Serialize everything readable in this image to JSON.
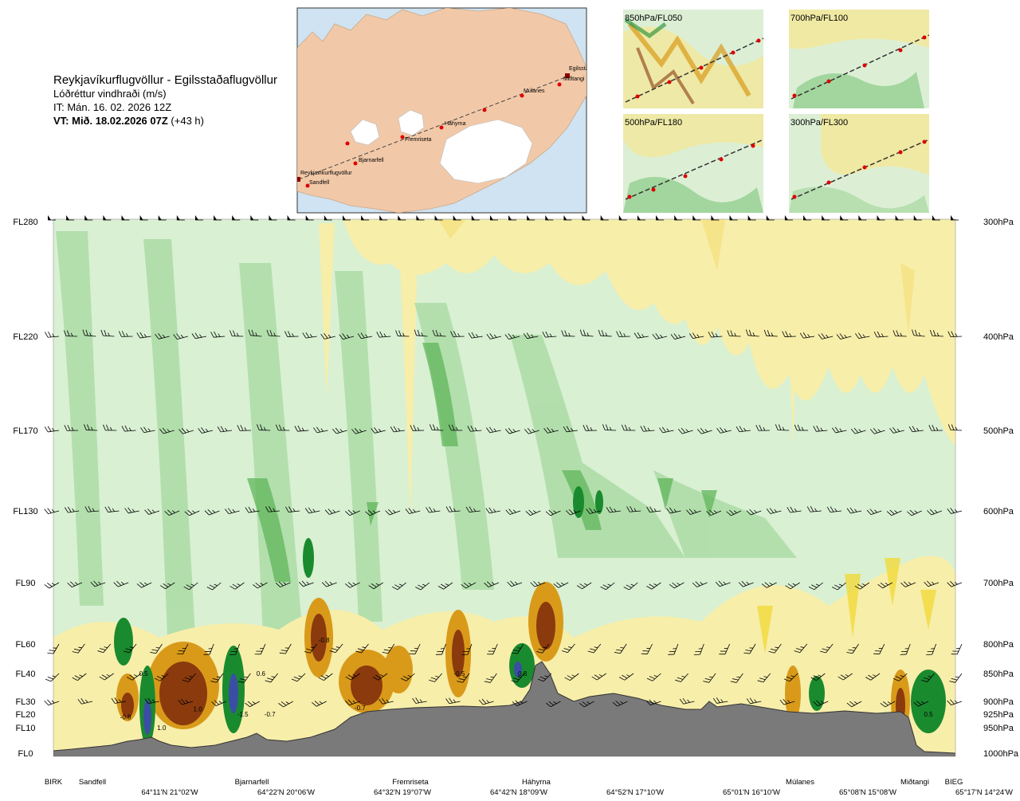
{
  "header": {
    "route_title": "Reykjavíkurflugvöllur - Egilsstaðaflugvöllur",
    "variable": "Lóðréttur vindhraði (m/s)",
    "issue_time": "IT: Mán. 16. 02. 2026 12Z",
    "valid_time_label": "VT: Mið. 18.02.2026 07Z",
    "valid_offset": "(+43 h)"
  },
  "map": {
    "places": [
      "Reykjavíkurflugvöllur",
      "Sandfell",
      "Bjarnarfell",
      "Fremriseta",
      "Háhyrna",
      "Múlanes",
      "Miðtangi",
      "Egilssta"
    ]
  },
  "thumbnails": [
    {
      "label": "850hPa/FL050"
    },
    {
      "label": "700hPa/FL100"
    },
    {
      "label": "500hPa/FL180"
    },
    {
      "label": "300hPa/FL300"
    }
  ],
  "colors": {
    "up_light": "#d9f0d3",
    "up_mid": "#a6d9a0",
    "up_strong": "#5fb65b",
    "up_vstrong": "#1a8a2e",
    "up_max": "#3a4fa3",
    "down_light": "#f7eeaa",
    "down_mid": "#f0d93a",
    "down_strong": "#d99a1a",
    "down_max": "#8a3a0d",
    "terrain": "#7a7a7a",
    "map_land": "#f2c9a8",
    "map_sea": "#cfe3f2",
    "glacier": "#ffffff",
    "route_point": "#e00000"
  },
  "chart_data": {
    "type": "heatmap",
    "title": "Lóðréttur vindhraði (m/s)",
    "left_axis_levels": [
      "FL280",
      "FL220",
      "FL170",
      "FL130",
      "FL90",
      "FL60",
      "FL40",
      "FL30",
      "FL20",
      "FL10",
      "FL0"
    ],
    "right_axis_levels": [
      "300hPa",
      "400hPa",
      "500hPa",
      "600hPa",
      "700hPa",
      "800hPa",
      "850hPa",
      "900hPa",
      "925hPa",
      "950hPa",
      "1000hPa"
    ],
    "flight_level_values": [
      280,
      220,
      170,
      130,
      90,
      60,
      40,
      30,
      20,
      10,
      0
    ],
    "x_places": [
      "BIRK",
      "Sandfell",
      "Bjarnarfell",
      "Fremriseta",
      "Háhyrna",
      "Múlanes",
      "Miðtangi",
      "BIEG"
    ],
    "x_coordinates": [
      "64°11'N 21°02'W",
      "64°22'N 20°06'W",
      "64°32'N 19°07'W",
      "64°42'N 18°09'W",
      "64°52'N 17°10'W",
      "65°01'N 16°10'W",
      "65°08'N 15°08'W",
      "65°17'N 14°24'W"
    ],
    "contour_labels": [
      {
        "distance": 0.08,
        "flight_level": 18,
        "value": "-0.8"
      },
      {
        "distance": 0.1,
        "flight_level": 40,
        "value": "0.5"
      },
      {
        "distance": 0.12,
        "flight_level": 10,
        "value": "1.0"
      },
      {
        "distance": 0.16,
        "flight_level": 24,
        "value": "1.0"
      },
      {
        "distance": 0.21,
        "flight_level": 20,
        "value": "-1.5"
      },
      {
        "distance": 0.23,
        "flight_level": 40,
        "value": "0.6"
      },
      {
        "distance": 0.24,
        "flight_level": 20,
        "value": "-0.7"
      },
      {
        "distance": 0.3,
        "flight_level": 62,
        "value": "-0.8"
      },
      {
        "distance": 0.34,
        "flight_level": 25,
        "value": "-0.7"
      },
      {
        "distance": 0.45,
        "flight_level": 40,
        "value": "-0.5"
      },
      {
        "distance": 0.52,
        "flight_level": 40,
        "value": "0.8"
      },
      {
        "distance": 0.97,
        "flight_level": 20,
        "value": "0.5"
      }
    ]
  }
}
